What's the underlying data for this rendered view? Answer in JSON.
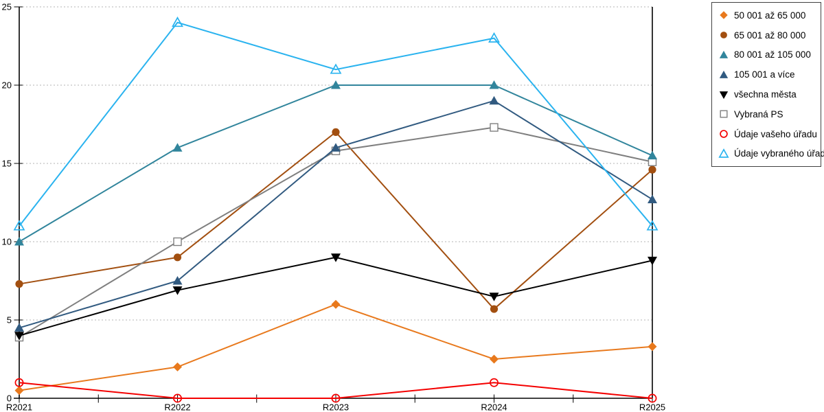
{
  "chart_data": {
    "type": "line",
    "title": "",
    "xlabel": "",
    "ylabel": "",
    "categories": [
      "R2021",
      "R2022",
      "R2023",
      "R2024",
      "R2025"
    ],
    "ylim": [
      0,
      25
    ],
    "y_ticks": [
      0,
      5,
      10,
      15,
      20,
      25
    ],
    "grid": "horizontal-dashed",
    "legend_position": "top-right-outside",
    "series": [
      {
        "name": "50 001 až 65 000",
        "color": "#E8791D",
        "marker": "diamond",
        "marker_style": "solid",
        "values": [
          0.5,
          2.0,
          6.0,
          2.5,
          3.3
        ]
      },
      {
        "name": "65 001 až 80 000",
        "color": "#A24F10",
        "marker": "circle",
        "marker_style": "solid",
        "values": [
          7.3,
          9.0,
          17.0,
          5.7,
          14.6
        ]
      },
      {
        "name": "80 001 až 105 000",
        "color": "#31859C",
        "marker": "triangle-up",
        "marker_style": "solid",
        "values": [
          10.0,
          16.0,
          20.0,
          20.0,
          15.5
        ]
      },
      {
        "name": "105 001 a více",
        "color": "#315A80",
        "marker": "triangle-up",
        "marker_style": "solid",
        "values": [
          4.5,
          7.5,
          16.0,
          19.0,
          12.7
        ]
      },
      {
        "name": "všechna města",
        "color": "#000000",
        "marker": "triangle-down",
        "marker_style": "solid",
        "values": [
          4.0,
          6.9,
          9.0,
          6.5,
          8.8
        ]
      },
      {
        "name": "Vybraná PS",
        "color": "#7F7F7F",
        "marker": "square",
        "marker_style": "open-white",
        "values": [
          3.9,
          10.0,
          15.8,
          17.3,
          15.1
        ]
      },
      {
        "name": "Údaje vašeho úřadu",
        "color": "#F40000",
        "marker": "circle",
        "marker_style": "open",
        "values": [
          1.0,
          0.0,
          0.0,
          1.0,
          0.0
        ]
      },
      {
        "name": "Údaje vybraného úřadu",
        "color": "#2AB3EF",
        "marker": "triangle-up",
        "marker_style": "open",
        "values": [
          11.0,
          24.0,
          21.0,
          23.0,
          11.0
        ]
      }
    ],
    "colors": {
      "gridline": "#B3B3B3",
      "axis": "#000000",
      "text": "#000000",
      "legend_border": "#404040"
    }
  }
}
